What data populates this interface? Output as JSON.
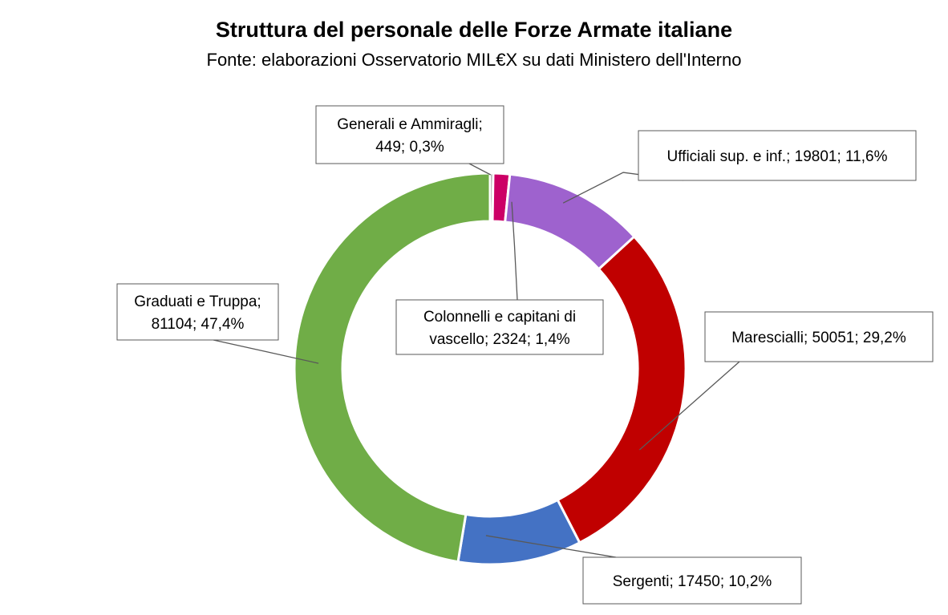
{
  "chart_data": {
    "type": "pie",
    "variant": "donut",
    "title": "Struttura del personale delle Forze Armate italiane",
    "subtitle": "Fonte: elaborazioni Osservatorio MIL€X su dati Ministero dell'Interno",
    "legend": "none",
    "slices": [
      {
        "name": "Generali e Ammiragli",
        "value": 449,
        "percent": "0,3%",
        "color": "#7F7F7F",
        "label_lines": [
          "Generali e Ammiragli;",
          "449; 0,3%"
        ]
      },
      {
        "name": "Colonnelli e capitani di vascello",
        "value": 2324,
        "percent": "1,4%",
        "color": "#CC0066",
        "label_lines": [
          "Colonnelli e capitani di",
          "vascello; 2324; 1,4%"
        ]
      },
      {
        "name": "Ufficiali sup. e inf.",
        "value": 19801,
        "percent": "11,6%",
        "color": "#9E62CE",
        "label_lines": [
          "Ufficiali sup. e inf.; 19801; 11,6%"
        ]
      },
      {
        "name": "Marescialli",
        "value": 50051,
        "percent": "29,2%",
        "color": "#C00000",
        "label_lines": [
          "Marescialli; 50051; 29,2%"
        ]
      },
      {
        "name": "Sergenti",
        "value": 17450,
        "percent": "10,2%",
        "color": "#4472C4",
        "label_lines": [
          "Sergenti; 17450; 10,2%"
        ]
      },
      {
        "name": "Graduati e Truppa",
        "value": 81104,
        "percent": "47,4%",
        "color": "#70AD47",
        "label_lines": [
          "Graduati e Truppa;",
          "81104; 47,4%"
        ]
      }
    ]
  }
}
